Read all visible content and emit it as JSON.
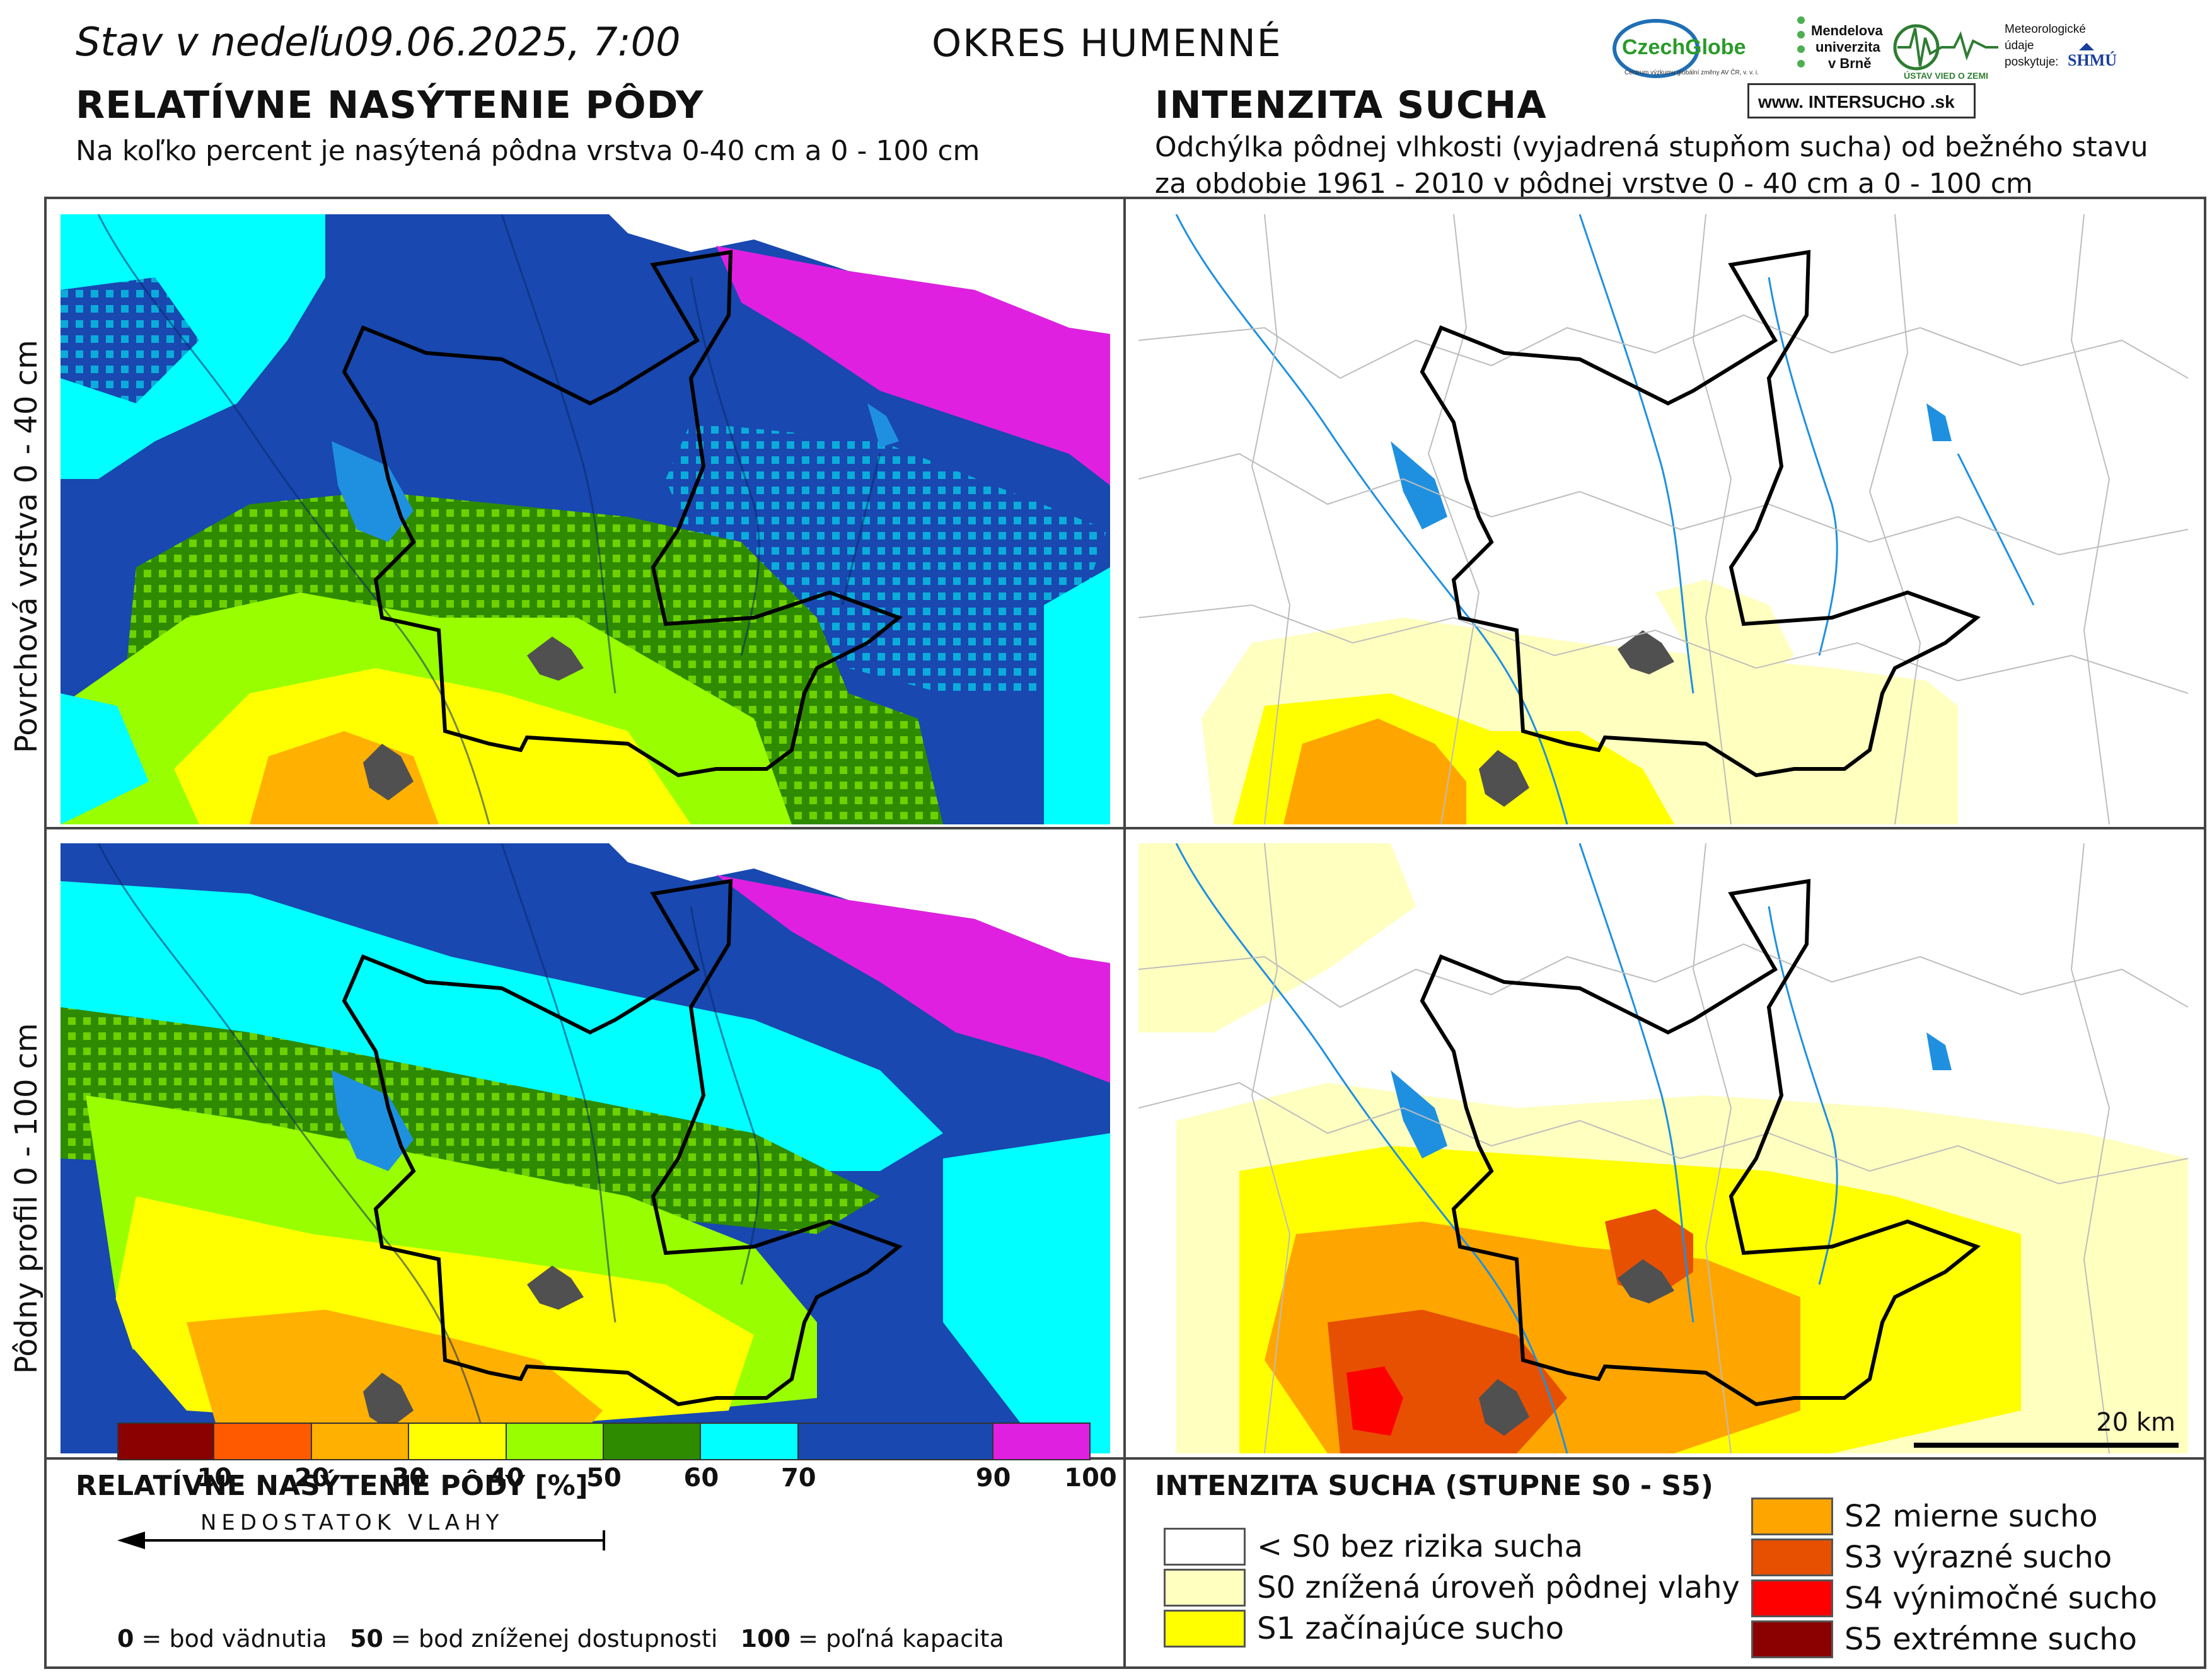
{
  "header": {
    "date_line": "Stav v nedeľu09.06.2025, 7:00",
    "district": "OKRES  HUMENNÉ"
  },
  "logos": {
    "czechglobe": "CzechGlobe",
    "czechglobe_sub": "Centrum výzkumu globální změny AV ČR, v. v. i.",
    "mendel_line1": "Mendelova",
    "mendel_line2": "univerzita",
    "mendel_line3": "v Brně",
    "ustav": "ÚSTAV VIED O ZEMI",
    "meteo_line1": "Meteorologické",
    "meteo_line2": "údaje",
    "meteo_line3": "poskytuje:",
    "shmu": "SHMÚ",
    "intersucho": "www. INTERSUCHO .sk"
  },
  "left_section": {
    "title": "RELATÍVNE NASÝTENIE PÔDY",
    "subtitle": "Na koľko percent je nasýtená pôdna vrstva 0-40 cm a 0 - 100 cm"
  },
  "right_section": {
    "title": "INTENZITA SUCHA",
    "subtitle_line1": "Odchýlka pôdnej vlhkosti (vyjadrená stupňom sucha) od bežného stavu",
    "subtitle_line2": "za obdobie 1961 - 2010 v pôdnej vrstve 0 - 40 cm a 0 - 100 cm"
  },
  "row_labels": {
    "top": "Povrchová vrstva 0 - 40 cm",
    "bottom": "Pôdny profil 0 - 100 cm"
  },
  "scale_bar_label": "20 km",
  "saturation_legend": {
    "title": "RELATÍVNE NASÝTENIE PÔDY [%]",
    "arrow_label": "NEDOSTATOK VLAHY",
    "bins": [
      {
        "from": 0,
        "to": 10,
        "color": "#8b0000"
      },
      {
        "from": 10,
        "to": 20,
        "color": "#ff5a00"
      },
      {
        "from": 20,
        "to": 30,
        "color": "#ffb000"
      },
      {
        "from": 30,
        "to": 40,
        "color": "#ffff00"
      },
      {
        "from": 40,
        "to": 50,
        "color": "#99ff00"
      },
      {
        "from": 50,
        "to": 60,
        "color": "#2e8b00"
      },
      {
        "from": 60,
        "to": 70,
        "color": "#00ffff"
      },
      {
        "from": 70,
        "to": 90,
        "color": "#1848b0"
      },
      {
        "from": 90,
        "to": 100,
        "color": "#e020e0"
      }
    ],
    "ticks": [
      "10",
      "20",
      "30",
      "40",
      "50",
      "60",
      "70",
      "90",
      "100"
    ],
    "footnote_0": "0",
    "footnote_0_text": " = bod vädnutia",
    "footnote_50": "50",
    "footnote_50_text": " = bod zníženej dostupnosti",
    "footnote_100": "100",
    "footnote_100_text": " = poľná kapacita"
  },
  "drought_legend": {
    "title": "INTENZITA SUCHA (STUPNE S0 - S5)",
    "items": [
      {
        "label": "< S0 bez rizika sucha",
        "color": "#ffffff"
      },
      {
        "label": "S0 znížená úroveň pôdnej vlahy",
        "color": "#ffffbf"
      },
      {
        "label": "S1 začínajúce sucho",
        "color": "#ffff00"
      },
      {
        "label": "S2 mierne sucho",
        "color": "#ffa500"
      },
      {
        "label": "S3 výrazné sucho",
        "color": "#e65000"
      },
      {
        "label": "S4 výnimočné sucho",
        "color": "#ff0000"
      },
      {
        "label": "S5 extrémne sucho",
        "color": "#8b0000"
      }
    ]
  }
}
